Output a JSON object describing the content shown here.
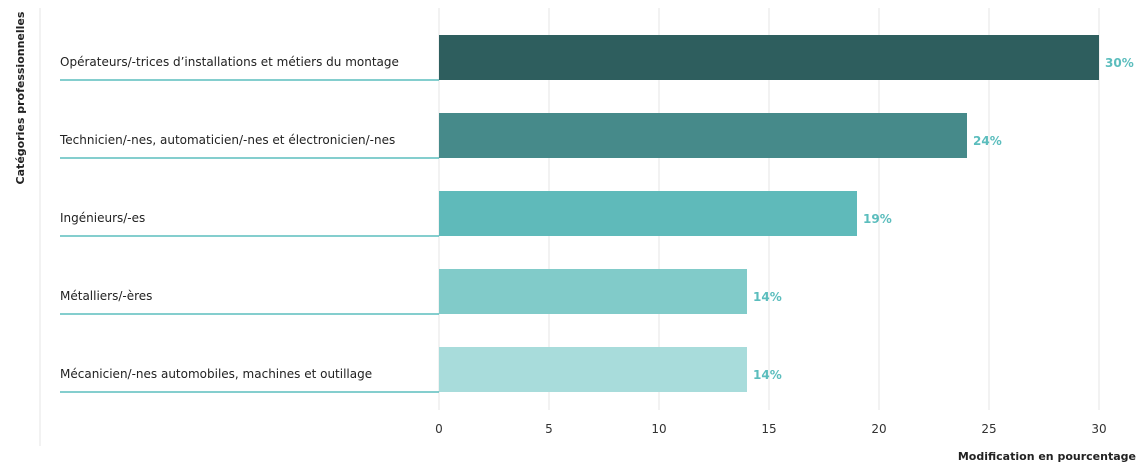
{
  "chart_data": {
    "type": "bar",
    "orientation": "horizontal",
    "ylabel": "Catégories professionnelles",
    "xlabel": "Modification en pourcentage",
    "categories": [
      "Opérateurs/-trices d’installations et métiers du montage",
      "Technicien/-nes, automaticien/-nes et électronicien/-nes",
      "Ingénieurs/-es",
      "Métalliers/-ères",
      "Mécanicien/-nes automobiles, machines et outillage"
    ],
    "values": [
      30,
      24,
      19,
      14,
      14
    ],
    "data_labels": [
      "30%",
      "24%",
      "19%",
      "14%",
      "14%"
    ],
    "colors": [
      "#2e5e5e",
      "#468a8a",
      "#5fbaba",
      "#81cbc9",
      "#a8dcdb"
    ],
    "label_color": "#5bbdbd",
    "xlim": [
      0,
      30
    ],
    "xticks": [
      0,
      5,
      10,
      15,
      20,
      25,
      30
    ],
    "xtick_labels": [
      "0",
      "5",
      "10",
      "15",
      "20",
      "25",
      "30"
    ],
    "grid": true
  }
}
